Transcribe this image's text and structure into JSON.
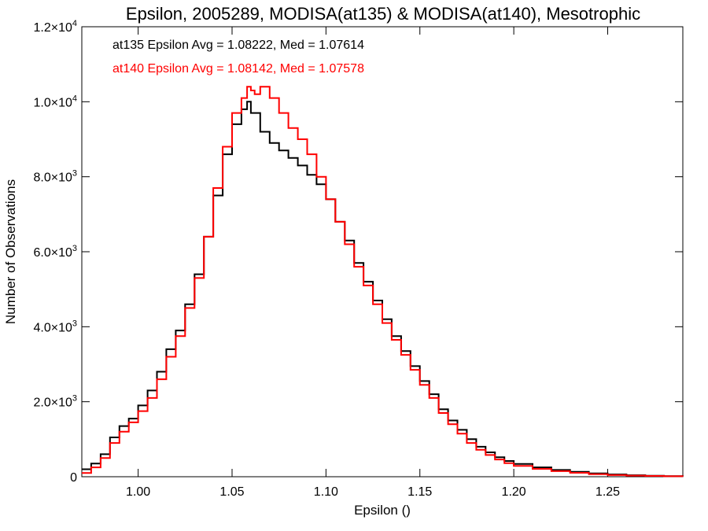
{
  "chart_data": {
    "type": "line",
    "title": "Epsilon, 2005289, MODISA(at135) & MODISA(at140), Mesotrophic",
    "xlabel": "Epsilon ()",
    "ylabel": "Number of Observations",
    "xlim": [
      0.97,
      1.29
    ],
    "ylim": [
      0,
      12000
    ],
    "grid": false,
    "x_ticks": [
      {
        "value": 1.0,
        "label": "1.00"
      },
      {
        "value": 1.05,
        "label": "1.05"
      },
      {
        "value": 1.1,
        "label": "1.10"
      },
      {
        "value": 1.15,
        "label": "1.15"
      },
      {
        "value": 1.2,
        "label": "1.20"
      },
      {
        "value": 1.25,
        "label": "1.25"
      }
    ],
    "y_ticks": [
      {
        "value": 0,
        "mant": "0",
        "exp": ""
      },
      {
        "value": 2000,
        "mant": "2.0×10",
        "exp": "3"
      },
      {
        "value": 4000,
        "mant": "4.0×10",
        "exp": "3"
      },
      {
        "value": 6000,
        "mant": "6.0×10",
        "exp": "3"
      },
      {
        "value": 8000,
        "mant": "8.0×10",
        "exp": "3"
      },
      {
        "value": 10000,
        "mant": "1.0×10",
        "exp": "4"
      },
      {
        "value": 12000,
        "mant": "1.2×10",
        "exp": "4"
      }
    ],
    "annotations": [
      {
        "text": "at135 Epsilon Avg = 1.08222, Med = 1.07614",
        "color": "#000000"
      },
      {
        "text": "at140 Epsilon Avg = 1.08142, Med = 1.07578",
        "color": "#ff0000"
      }
    ],
    "series": [
      {
        "color": "#000000",
        "step": true,
        "points": [
          [
            0.97,
            200
          ],
          [
            0.975,
            350
          ],
          [
            0.98,
            600
          ],
          [
            0.985,
            1050
          ],
          [
            0.99,
            1350
          ],
          [
            0.995,
            1550
          ],
          [
            1.0,
            1900
          ],
          [
            1.005,
            2300
          ],
          [
            1.01,
            2800
          ],
          [
            1.015,
            3400
          ],
          [
            1.02,
            3900
          ],
          [
            1.025,
            4600
          ],
          [
            1.03,
            5400
          ],
          [
            1.035,
            6400
          ],
          [
            1.04,
            7500
          ],
          [
            1.045,
            8600
          ],
          [
            1.05,
            9400
          ],
          [
            1.055,
            9800
          ],
          [
            1.058,
            10000
          ],
          [
            1.06,
            9700
          ],
          [
            1.065,
            9200
          ],
          [
            1.07,
            8900
          ],
          [
            1.075,
            8700
          ],
          [
            1.08,
            8500
          ],
          [
            1.085,
            8300
          ],
          [
            1.09,
            8050
          ],
          [
            1.095,
            7800
          ],
          [
            1.1,
            7400
          ],
          [
            1.105,
            6800
          ],
          [
            1.11,
            6300
          ],
          [
            1.115,
            5700
          ],
          [
            1.12,
            5200
          ],
          [
            1.125,
            4700
          ],
          [
            1.13,
            4200
          ],
          [
            1.135,
            3750
          ],
          [
            1.14,
            3350
          ],
          [
            1.145,
            2950
          ],
          [
            1.15,
            2550
          ],
          [
            1.155,
            2200
          ],
          [
            1.16,
            1800
          ],
          [
            1.165,
            1500
          ],
          [
            1.17,
            1250
          ],
          [
            1.175,
            1000
          ],
          [
            1.18,
            800
          ],
          [
            1.185,
            650
          ],
          [
            1.19,
            520
          ],
          [
            1.195,
            420
          ],
          [
            1.2,
            340
          ],
          [
            1.21,
            250
          ],
          [
            1.22,
            180
          ],
          [
            1.23,
            130
          ],
          [
            1.24,
            90
          ],
          [
            1.25,
            60
          ],
          [
            1.26,
            40
          ],
          [
            1.27,
            25
          ],
          [
            1.28,
            15
          ],
          [
            1.29,
            10
          ]
        ]
      },
      {
        "color": "#ff0000",
        "step": true,
        "points": [
          [
            0.97,
            100
          ],
          [
            0.975,
            250
          ],
          [
            0.98,
            500
          ],
          [
            0.985,
            900
          ],
          [
            0.99,
            1200
          ],
          [
            0.995,
            1450
          ],
          [
            1.0,
            1750
          ],
          [
            1.005,
            2100
          ],
          [
            1.01,
            2600
          ],
          [
            1.015,
            3200
          ],
          [
            1.02,
            3750
          ],
          [
            1.025,
            4500
          ],
          [
            1.03,
            5300
          ],
          [
            1.035,
            6400
          ],
          [
            1.04,
            7700
          ],
          [
            1.045,
            8800
          ],
          [
            1.05,
            9700
          ],
          [
            1.055,
            10100
          ],
          [
            1.058,
            10400
          ],
          [
            1.06,
            10300
          ],
          [
            1.062,
            10200
          ],
          [
            1.065,
            10400
          ],
          [
            1.07,
            10100
          ],
          [
            1.075,
            9700
          ],
          [
            1.08,
            9300
          ],
          [
            1.085,
            9000
          ],
          [
            1.09,
            8600
          ],
          [
            1.095,
            8000
          ],
          [
            1.1,
            7400
          ],
          [
            1.105,
            6800
          ],
          [
            1.11,
            6200
          ],
          [
            1.115,
            5600
          ],
          [
            1.12,
            5100
          ],
          [
            1.125,
            4600
          ],
          [
            1.13,
            4100
          ],
          [
            1.135,
            3650
          ],
          [
            1.14,
            3250
          ],
          [
            1.145,
            2850
          ],
          [
            1.15,
            2450
          ],
          [
            1.155,
            2100
          ],
          [
            1.16,
            1700
          ],
          [
            1.165,
            1400
          ],
          [
            1.17,
            1150
          ],
          [
            1.175,
            900
          ],
          [
            1.18,
            720
          ],
          [
            1.185,
            580
          ],
          [
            1.19,
            460
          ],
          [
            1.195,
            360
          ],
          [
            1.2,
            290
          ],
          [
            1.21,
            210
          ],
          [
            1.22,
            150
          ],
          [
            1.23,
            105
          ],
          [
            1.24,
            70
          ],
          [
            1.25,
            45
          ],
          [
            1.26,
            30
          ],
          [
            1.27,
            20
          ],
          [
            1.28,
            12
          ],
          [
            1.29,
            8
          ]
        ]
      }
    ]
  }
}
